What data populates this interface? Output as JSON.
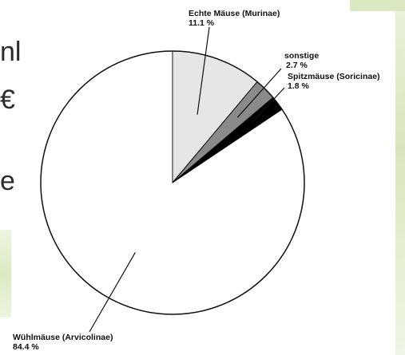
{
  "slide_text_fragments": [
    "nl",
    "€",
    "e"
  ],
  "chart_data": {
    "type": "pie",
    "slices": [
      {
        "label": "Echte Mäuse (Murinae)",
        "value_text": "11.1 %",
        "value": 11.1,
        "fill": "#e6e6e6"
      },
      {
        "label": "sonstige",
        "value_text": "2.7 %",
        "value": 2.7,
        "fill": "#8a8a8a"
      },
      {
        "label": "Spitzmäuse (Soricinae)",
        "value_text": "1.8 %",
        "value": 1.8,
        "fill": "#000000"
      },
      {
        "label": "Wühlmäuse (Arvicolinae)",
        "value_text": "84.4 %",
        "value": 84.4,
        "fill": "#ffffff"
      }
    ],
    "start_angle": 0,
    "direction": "clockwise",
    "legend": "none"
  }
}
